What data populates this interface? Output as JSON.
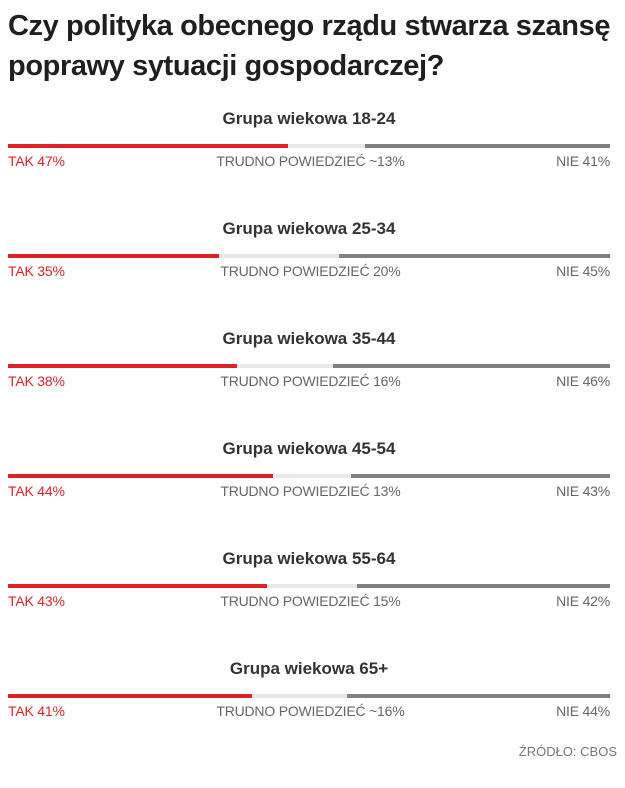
{
  "title": "Czy polityka obecnego rządu stwarza szansę poprawy sytuacji gospodarczej?",
  "source": "ŹRÓDŁO: CBOS",
  "colors": {
    "tak": "#e02226",
    "trudno": "#e8e8e8",
    "nie": "#808080"
  },
  "chart_data": {
    "type": "bar",
    "stacked": true,
    "orientation": "horizontal",
    "title": "Czy polityka obecnego rządu stwarza szansę poprawy sytuacji gospodarczej?",
    "categories": [
      "Grupa wiekowa 18-24",
      "Grupa wiekowa 25-34",
      "Grupa wiekowa 35-44",
      "Grupa wiekowa 45-54",
      "Grupa wiekowa 55-64",
      "Grupa wiekowa 65+"
    ],
    "series": [
      {
        "name": "TAK",
        "values": [
          47,
          35,
          38,
          44,
          43,
          41
        ]
      },
      {
        "name": "TRUDNO POWIEDZIEĆ",
        "values": [
          13,
          20,
          16,
          13,
          15,
          16
        ]
      },
      {
        "name": "NIE",
        "values": [
          41,
          45,
          46,
          43,
          42,
          44
        ]
      }
    ],
    "groups": [
      {
        "title": "Grupa wiekowa 18-24",
        "tak": 47,
        "trudno": 13,
        "nie": 41,
        "tak_label": "TAK 47%",
        "trudno_label": "TRUDNO POWIEDZIEĆ ~13%",
        "nie_label": "NIE 41%"
      },
      {
        "title": "Grupa wiekowa 25-34",
        "tak": 35,
        "trudno": 20,
        "nie": 45,
        "tak_label": "TAK 35%",
        "trudno_label": "TRUDNO POWIEDZIEĆ 20%",
        "nie_label": "NIE 45%"
      },
      {
        "title": "Grupa wiekowa 35-44",
        "tak": 38,
        "trudno": 16,
        "nie": 46,
        "tak_label": "TAK 38%",
        "trudno_label": "TRUDNO POWIEDZIEĆ 16%",
        "nie_label": "NIE 46%"
      },
      {
        "title": "Grupa wiekowa 45-54",
        "tak": 44,
        "trudno": 13,
        "nie": 43,
        "tak_label": "TAK 44%",
        "trudno_label": "TRUDNO POWIEDZIEĆ 13%",
        "nie_label": "NIE 43%"
      },
      {
        "title": "Grupa wiekowa 55-64",
        "tak": 43,
        "trudno": 15,
        "nie": 42,
        "tak_label": "TAK 43%",
        "trudno_label": "TRUDNO POWIEDZIEĆ 15%",
        "nie_label": "NIE 42%"
      },
      {
        "title": "Grupa wiekowa 65+",
        "tak": 41,
        "trudno": 16,
        "nie": 44,
        "tak_label": "TAK 41%",
        "trudno_label": "TRUDNO POWIEDZIEĆ ~16%",
        "nie_label": "NIE 44%"
      }
    ]
  }
}
